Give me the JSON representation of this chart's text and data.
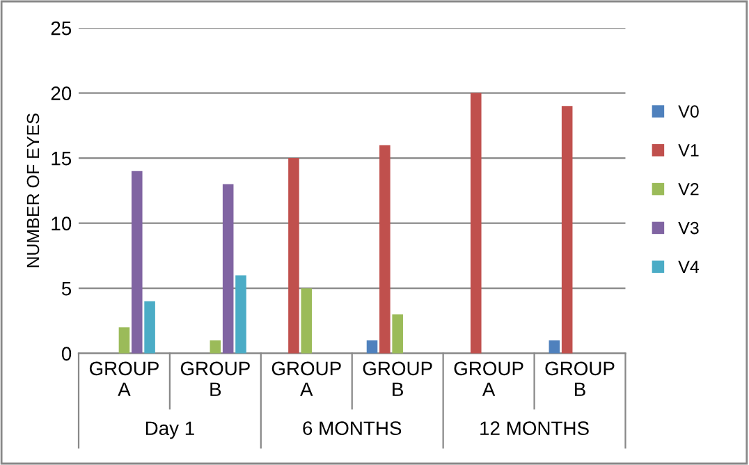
{
  "chart_data": {
    "type": "bar",
    "ylabel": "NUMBER OF EYES",
    "categories": [
      "GROUP\nA",
      "GROUP\nB",
      "GROUP\nA",
      "GROUP\nB",
      "GROUP\nA",
      "GROUP\nB"
    ],
    "series": [
      {
        "name": "V0",
        "color": "#4f81bd",
        "values": [
          0,
          0,
          0,
          1,
          0,
          1
        ]
      },
      {
        "name": "V1",
        "color": "#c0504d",
        "values": [
          0,
          0,
          15,
          16,
          20,
          19
        ]
      },
      {
        "name": "V2",
        "color": "#9bbb59",
        "values": [
          2,
          1,
          5,
          3,
          0,
          0
        ]
      },
      {
        "name": "V3",
        "color": "#8064a2",
        "values": [
          14,
          13,
          0,
          0,
          0,
          0
        ]
      },
      {
        "name": "V4",
        "color": "#4bacc6",
        "values": [
          4,
          6,
          0,
          0,
          0,
          0
        ]
      }
    ],
    "annotations": [
      "Day 1",
      "6 MONTHS",
      "12 MONTHS"
    ],
    "ylim": [
      0,
      25
    ],
    "yticks": [
      0,
      5,
      10,
      15,
      20,
      25
    ],
    "grid": "y",
    "legend": "right"
  }
}
